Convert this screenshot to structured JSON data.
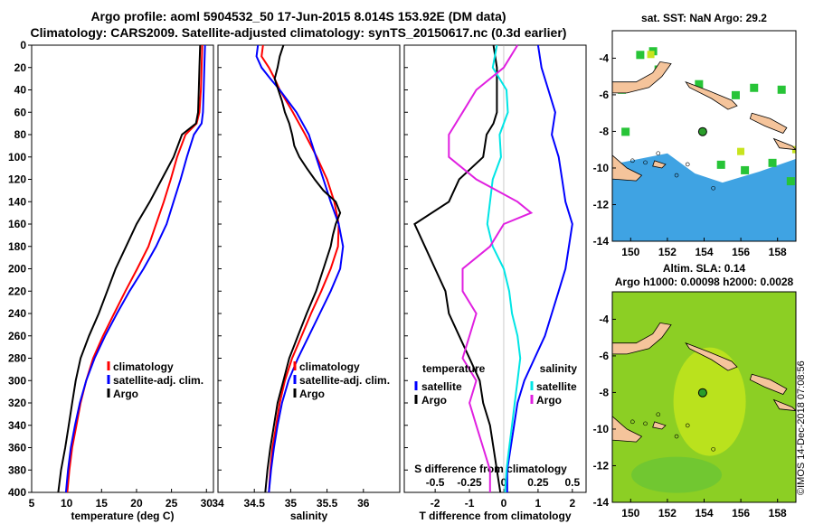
{
  "header": {
    "line1": "Argo profile: aoml 5904532_50 17-Jun-2015 8.014S 153.92E (DM data)",
    "line2": "Climatology: CARS2009. Satellite-adjusted climatology: synTS_20150617.nc (0.3d earlier)"
  },
  "credit": "©IMOS 14-Dec-2018 07:08:56",
  "depth_ticks": [
    "0",
    "20",
    "40",
    "60",
    "80",
    "100",
    "120",
    "140",
    "160",
    "180",
    "200",
    "220",
    "240",
    "260",
    "280",
    "300",
    "320",
    "340",
    "360",
    "380",
    "400"
  ],
  "chart_data": [
    {
      "type": "line",
      "name": "temperature",
      "xlabel": "temperature (deg C)",
      "xlim": [
        5,
        31
      ],
      "ylim": [
        0,
        400
      ],
      "xticks": [
        "5",
        "10",
        "15",
        "20",
        "25",
        "30"
      ],
      "legend": [
        "climatology",
        "satellite-adj. clim.",
        "Argo"
      ],
      "series": [
        {
          "name": "climatology",
          "color": "#ff0000",
          "y": [
            0,
            20,
            40,
            60,
            70,
            80,
            100,
            120,
            140,
            160,
            180,
            200,
            220,
            240,
            260,
            280,
            300,
            320,
            340,
            360,
            380,
            400
          ],
          "x": [
            29.4,
            29.3,
            29.2,
            29.0,
            28.6,
            27.0,
            25.8,
            24.9,
            23.9,
            22.8,
            21.7,
            20.1,
            18.4,
            16.8,
            15.2,
            13.8,
            12.8,
            12.0,
            11.4,
            10.8,
            10.4,
            10.1
          ]
        },
        {
          "name": "satellite-adj. clim.",
          "color": "#0000ff",
          "y": [
            0,
            20,
            40,
            60,
            70,
            80,
            100,
            120,
            140,
            160,
            180,
            200,
            220,
            240,
            260,
            280,
            300,
            320,
            340,
            360,
            380,
            400
          ],
          "x": [
            29.8,
            29.7,
            29.6,
            29.5,
            29.3,
            28.2,
            27.2,
            26.3,
            25.3,
            24.3,
            22.8,
            21.0,
            19.0,
            17.2,
            15.5,
            14.0,
            12.8,
            11.9,
            11.2,
            10.6,
            10.2,
            9.9
          ]
        },
        {
          "name": "Argo",
          "color": "#000000",
          "y": [
            0,
            20,
            40,
            60,
            70,
            80,
            100,
            120,
            140,
            160,
            180,
            200,
            220,
            240,
            260,
            280,
            300,
            320,
            340,
            360,
            380,
            400
          ],
          "x": [
            29.1,
            29.0,
            28.9,
            28.8,
            28.5,
            26.5,
            25.3,
            23.6,
            21.9,
            20.0,
            18.5,
            17.0,
            15.8,
            14.6,
            13.2,
            12.0,
            11.3,
            10.8,
            10.3,
            9.8,
            9.2,
            8.8
          ]
        }
      ]
    },
    {
      "type": "line",
      "name": "salinity",
      "xlabel": "salinity",
      "xlim": [
        34,
        36.5
      ],
      "ylim": [
        0,
        400
      ],
      "xticks": [
        "34",
        "34.5",
        "35",
        "35.5",
        "36"
      ],
      "legend": [
        "climatology",
        "satellite-adj. clim.",
        "Argo"
      ],
      "series": [
        {
          "name": "climatology",
          "color": "#ff0000",
          "y": [
            0,
            10,
            20,
            30,
            40,
            60,
            80,
            100,
            120,
            140,
            160,
            180,
            200,
            220,
            240,
            260,
            280,
            300,
            320,
            340,
            360,
            380,
            400
          ],
          "x": [
            34.62,
            34.6,
            34.7,
            34.78,
            34.85,
            35.03,
            35.2,
            35.36,
            35.5,
            35.6,
            35.66,
            35.65,
            35.55,
            35.42,
            35.28,
            35.15,
            35.02,
            34.92,
            34.85,
            34.8,
            34.75,
            34.72,
            34.7
          ]
        },
        {
          "name": "satellite-adj. clim.",
          "color": "#0000ff",
          "y": [
            0,
            10,
            20,
            30,
            40,
            60,
            80,
            100,
            120,
            140,
            160,
            180,
            200,
            220,
            240,
            260,
            280,
            300,
            320,
            340,
            360,
            380,
            400
          ],
          "x": [
            34.55,
            34.53,
            34.6,
            34.72,
            34.85,
            35.08,
            35.25,
            35.35,
            35.45,
            35.55,
            35.66,
            35.72,
            35.68,
            35.55,
            35.4,
            35.25,
            35.1,
            34.97,
            34.88,
            34.82,
            34.77,
            34.73,
            34.7
          ]
        },
        {
          "name": "Argo",
          "color": "#000000",
          "y": [
            0,
            10,
            20,
            30,
            40,
            50,
            60,
            70,
            80,
            90,
            100,
            110,
            120,
            130,
            140,
            150,
            160,
            170,
            180,
            200,
            220,
            240,
            260,
            280,
            300,
            320,
            340,
            360,
            380,
            400
          ],
          "x": [
            34.9,
            34.85,
            34.82,
            34.78,
            34.83,
            34.88,
            34.92,
            34.98,
            35.02,
            35.05,
            35.12,
            35.22,
            35.33,
            35.45,
            35.62,
            35.68,
            35.62,
            35.58,
            35.55,
            35.45,
            35.35,
            35.22,
            35.1,
            34.98,
            34.9,
            34.82,
            34.77,
            34.72,
            34.68,
            34.65
          ]
        }
      ]
    },
    {
      "type": "line",
      "name": "difference",
      "xlabel": "T difference from climatology",
      "xlabel2": "S difference from climatology",
      "xlim": [
        -2.9,
        2.4
      ],
      "ylim": [
        0,
        400
      ],
      "xticks": [
        "-2",
        "-1",
        "0",
        "1",
        "2"
      ],
      "xticks2": [
        "-0.5",
        "-0.25",
        "0",
        "0.25",
        "0.5"
      ],
      "legend_temperature": {
        "title": "temperature",
        "items": [
          "satellite",
          "Argo"
        ]
      },
      "legend_salinity": {
        "title": "salinity",
        "items": [
          "satellite",
          "Argo"
        ]
      },
      "series": [
        {
          "name": "T satellite",
          "color": "#0000ff",
          "y": [
            0,
            20,
            40,
            60,
            80,
            100,
            120,
            140,
            160,
            180,
            200,
            220,
            240,
            260,
            280,
            300,
            320,
            340,
            360,
            380,
            400
          ],
          "x": [
            1.0,
            1.1,
            1.3,
            1.5,
            1.4,
            1.6,
            1.7,
            1.8,
            2.0,
            1.9,
            1.8,
            1.6,
            1.4,
            1.2,
            0.9,
            0.6,
            0.4,
            0.3,
            0.2,
            0.1,
            0.1
          ]
        },
        {
          "name": "T Argo",
          "color": "#000000",
          "y": [
            0,
            20,
            40,
            60,
            70,
            80,
            100,
            120,
            140,
            160,
            180,
            200,
            220,
            240,
            260,
            280,
            300,
            320,
            340,
            360,
            380,
            400
          ],
          "x": [
            -0.3,
            -0.2,
            -0.2,
            -0.2,
            -0.3,
            -0.5,
            -0.6,
            -1.3,
            -1.6,
            -2.6,
            -2.3,
            -2.0,
            -1.7,
            -1.6,
            -1.3,
            -1.0,
            -0.7,
            -0.6,
            -0.4,
            -0.3,
            -0.2,
            -0.1
          ]
        },
        {
          "name": "S satellite",
          "color": "#00e5e5",
          "y": [
            0,
            20,
            40,
            60,
            80,
            100,
            120,
            140,
            160,
            180,
            200,
            220,
            240,
            260,
            280,
            300,
            320,
            340,
            360,
            380,
            400
          ],
          "x": [
            -0.05,
            -0.08,
            0.02,
            0.03,
            -0.03,
            -0.02,
            -0.08,
            -0.1,
            -0.12,
            -0.08,
            0.0,
            0.04,
            0.06,
            0.1,
            0.12,
            0.1,
            0.08,
            0.06,
            0.04,
            0.02,
            0.01
          ]
        },
        {
          "name": "S Argo",
          "color": "#e020e0",
          "y": [
            0,
            20,
            40,
            60,
            80,
            100,
            120,
            140,
            150,
            160,
            180,
            200,
            220,
            240,
            260,
            280,
            300,
            320,
            340,
            360,
            380,
            400
          ],
          "x": [
            0.1,
            0.0,
            -0.2,
            -0.3,
            -0.4,
            -0.4,
            -0.2,
            0.1,
            0.2,
            0.0,
            -0.1,
            -0.3,
            -0.3,
            -0.2,
            -0.25,
            -0.3,
            -0.2,
            -0.25,
            -0.2,
            -0.15,
            -0.1,
            -0.1
          ]
        }
      ]
    }
  ],
  "maps": {
    "sst": {
      "title": "sat. SST: NaN Argo: 29.2",
      "xticks": [
        "150",
        "152",
        "154",
        "156",
        "158"
      ],
      "yticks": [
        "-4",
        "-6",
        "-8",
        "-10",
        "-12",
        "-14"
      ],
      "xlim": [
        149,
        159
      ],
      "ylim": [
        -14,
        -2.5
      ],
      "float_lon": 153.92,
      "float_lat": -8.014
    },
    "sla": {
      "title1": "Altim. SLA: 0.14",
      "title2": "Argo h1000: 0.00098 h2000: 0.0028",
      "xticks": [
        "150",
        "152",
        "154",
        "156",
        "158"
      ],
      "yticks": [
        "-4",
        "-6",
        "-8",
        "-10",
        "-12",
        "-14"
      ],
      "xlim": [
        149,
        159
      ],
      "ylim": [
        -14,
        -2.5
      ],
      "float_lon": 153.92,
      "float_lat": -8.014
    }
  },
  "colors": {
    "land": "#f5c49b",
    "sla_bg": "#8ccf24",
    "sst_water": "#3fa3e3"
  }
}
